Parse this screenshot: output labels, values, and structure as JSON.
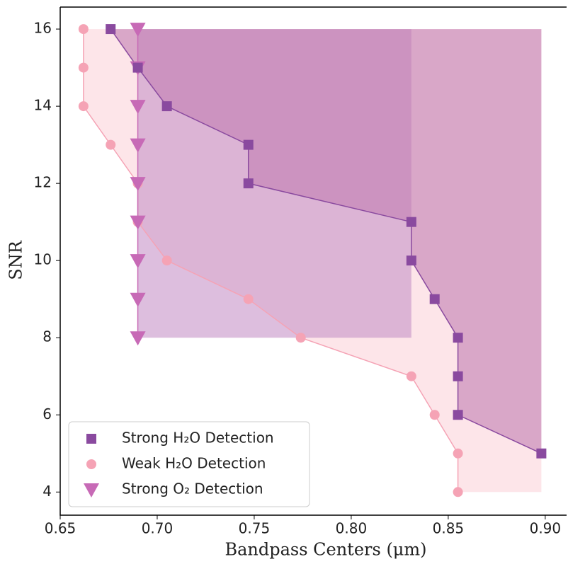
{
  "chart_data": {
    "type": "scatter",
    "xlabel": "Bandpass Centers (μm)",
    "ylabel": "SNR",
    "xlim": [
      0.65,
      0.911
    ],
    "ylim": [
      3.4,
      16.57
    ],
    "xticks": [
      {
        "value": 0.65,
        "label": "0.65"
      },
      {
        "value": 0.7,
        "label": "0.70"
      },
      {
        "value": 0.75,
        "label": "0.75"
      },
      {
        "value": 0.8,
        "label": "0.80"
      },
      {
        "value": 0.85,
        "label": "0.85"
      },
      {
        "value": 0.9,
        "label": "0.90"
      }
    ],
    "yticks": [
      4,
      6,
      8,
      10,
      12,
      14,
      16
    ],
    "legend": "lower left",
    "series": [
      {
        "name": "Weak H₂O Detection",
        "color": "#f5a3b5",
        "fill": "#fbd3db",
        "marker": "circle",
        "fill_to": 0.898,
        "x": [
          0.662,
          0.662,
          0.662,
          0.676,
          0.69,
          0.69,
          0.705,
          0.747,
          0.774,
          0.831,
          0.843,
          0.855,
          0.855
        ],
        "values": [
          16,
          15,
          14,
          13,
          12,
          11,
          10,
          9,
          8,
          7,
          6,
          5,
          4
        ]
      },
      {
        "name": "Strong O₂ Detection",
        "color": "#c76ab6",
        "fill": "#c693c8",
        "marker": "triangle",
        "fill_to": 0.831,
        "x": [
          0.69,
          0.69,
          0.69,
          0.69,
          0.69,
          0.69,
          0.69,
          0.69,
          0.69
        ],
        "values": [
          16,
          15,
          14,
          13,
          12,
          11,
          10,
          9,
          8
        ]
      },
      {
        "name": "Strong H₂O Detection",
        "color": "#8a4a9f",
        "fill": "#c27db3",
        "marker": "square",
        "fill_to": 0.898,
        "x": [
          0.676,
          0.69,
          0.705,
          0.747,
          0.747,
          0.831,
          0.831,
          0.843,
          0.855,
          0.855,
          0.855,
          0.898
        ],
        "values": [
          16,
          15,
          14,
          13,
          12,
          11,
          10,
          9,
          8,
          7,
          6,
          5
        ]
      }
    ]
  }
}
